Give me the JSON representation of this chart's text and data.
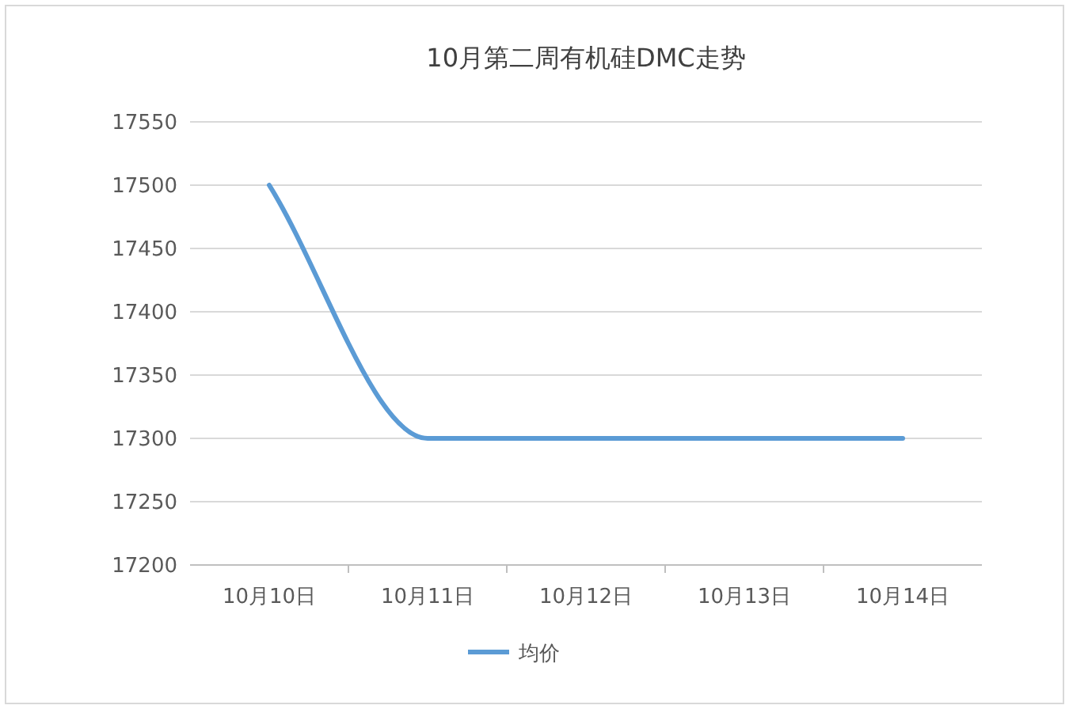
{
  "chart_data": {
    "type": "line",
    "title": "10月第二周有机硅DMC走势",
    "categories": [
      "10月10日",
      "10月11日",
      "10月12日",
      "10月13日",
      "10月14日"
    ],
    "series": [
      {
        "name": "均价",
        "color": "#5b9bd5",
        "values": [
          17500,
          17300,
          17300,
          17300,
          17300
        ]
      }
    ],
    "ylim": [
      17200,
      17550
    ],
    "yticks": [
      17200,
      17250,
      17300,
      17350,
      17400,
      17450,
      17500,
      17550
    ],
    "grid": "y",
    "legend": "bottom"
  }
}
